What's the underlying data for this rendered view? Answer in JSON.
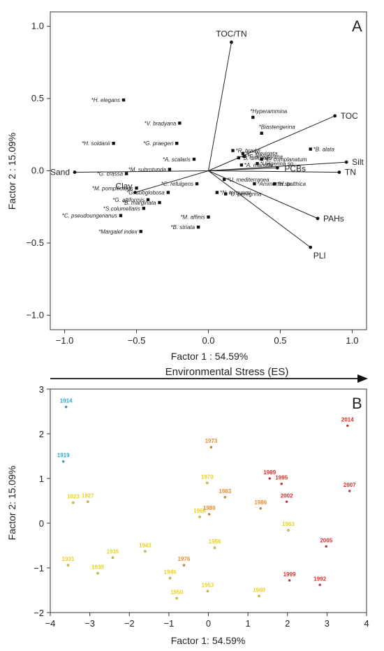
{
  "panel_a": {
    "letter": "A",
    "xlabel": "Factor 1 : 54.59%",
    "ylabel": "Factor 2 : 15.09%"
  },
  "arrow_label": "Environmental Stress (ES)",
  "panel_b": {
    "letter": "B",
    "xlabel": "Factor 1: 54.59%",
    "ylabel": "Factor 2: 15.09%"
  },
  "chart_data": [
    {
      "type": "scatter",
      "xlim": [
        -1.1,
        1.1
      ],
      "ylim": [
        -1.1,
        1.1
      ],
      "x_ticks": [
        -1.0,
        -0.5,
        0.0,
        0.5,
        1.0
      ],
      "y_ticks": [
        -1.0,
        -0.5,
        0.0,
        0.5,
        1.0
      ],
      "x_tick_labels": [
        "−1.0",
        "−0.5",
        "0.0",
        "0.5",
        "1.0"
      ],
      "y_tick_labels": [
        "−1.0",
        "−0.5",
        "0.0",
        "0.5",
        "1.0"
      ],
      "grid": false,
      "vectors": [
        {
          "label": "TOC/TN",
          "x": 0.16,
          "y": 0.89
        },
        {
          "label": "TOC",
          "x": 0.88,
          "y": 0.38
        },
        {
          "label": "Silt",
          "x": 0.96,
          "y": 0.06
        },
        {
          "label": "TN",
          "x": 0.91,
          "y": -0.01
        },
        {
          "label": "PCBs",
          "x": 0.48,
          "y": 0.02
        },
        {
          "label": "PAHs",
          "x": 0.76,
          "y": -0.33
        },
        {
          "label": "PLI",
          "x": 0.71,
          "y": -0.53
        },
        {
          "label": "Sand",
          "x": -0.93,
          "y": -0.01
        },
        {
          "label": "Clay",
          "x": -0.51,
          "y": -0.15
        }
      ],
      "species": [
        {
          "label": "*H. elegans",
          "x": -0.59,
          "y": 0.49
        },
        {
          "label": "*V. bradyana",
          "x": -0.2,
          "y": 0.33
        },
        {
          "label": "*H. soldanii",
          "x": -0.66,
          "y": 0.19
        },
        {
          "label": "*G. praegeri",
          "x": -0.22,
          "y": 0.19
        },
        {
          "label": "*Hyperammina",
          "x": 0.31,
          "y": 0.37
        },
        {
          "label": "*Biasterigerina",
          "x": 0.37,
          "y": 0.26
        },
        {
          "label": "TOC",
          "x": 0.0,
          "y": 0.0,
          "skip": true
        },
        {
          "label": "*B. alata",
          "x": 0.71,
          "y": 0.15
        },
        {
          "label": "*R. bradyi",
          "x": 0.17,
          "y": 0.14
        },
        {
          "label": "*C. laevigata",
          "x": 0.24,
          "y": 0.12
        },
        {
          "label": "*F. orbignyana",
          "x": 0.25,
          "y": 0.1
        },
        {
          "label": "*B. difformis",
          "x": 0.21,
          "y": 0.09
        },
        {
          "label": "*A. scalaris",
          "x": -0.1,
          "y": 0.08
        },
        {
          "label": "*E. complanatum",
          "x": 0.37,
          "y": 0.08
        },
        {
          "label": "*Uvigerina sp.",
          "x": 0.34,
          "y": 0.05
        },
        {
          "label": "*A. mamilla",
          "x": 0.23,
          "y": 0.04
        },
        {
          "label": "*G. crassa",
          "x": -0.57,
          "y": -0.02
        },
        {
          "label": "*M. subrotunda",
          "x": -0.27,
          "y": 0.01
        },
        {
          "label": "*U. mediterranea",
          "x": 0.11,
          "y": -0.06
        },
        {
          "label": "*Ammonia sp.",
          "x": 0.32,
          "y": -0.09
        },
        {
          "label": "*C. refulgens",
          "x": -0.08,
          "y": -0.09
        },
        {
          "label": "*H. balthica",
          "x": 0.46,
          "y": -0.09
        },
        {
          "label": "*M. pompilioides",
          "x": -0.5,
          "y": -0.12
        },
        {
          "label": "*N. terquemi",
          "x": 0.06,
          "y": -0.15
        },
        {
          "label": "*G. subglobosa",
          "x": -0.28,
          "y": -0.15
        },
        {
          "label": "*U. peregrina",
          "x": 0.12,
          "y": -0.16
        },
        {
          "label": "*G. altiformis",
          "x": -0.42,
          "y": -0.2
        },
        {
          "label": "*B. marginata",
          "x": -0.34,
          "y": -0.22
        },
        {
          "label": "*S.columellaris",
          "x": -0.45,
          "y": -0.26
        },
        {
          "label": "*C. pseudoungerianus",
          "x": -0.61,
          "y": -0.31
        },
        {
          "label": "*M. affinis",
          "x": 0.0,
          "y": -0.32
        },
        {
          "label": "*B. striata",
          "x": -0.07,
          "y": -0.39
        },
        {
          "label": "*Margalef index",
          "x": -0.47,
          "y": -0.42
        }
      ]
    },
    {
      "type": "scatter",
      "xlim": [
        -4,
        4
      ],
      "ylim": [
        -2,
        3
      ],
      "x_ticks": [
        -4,
        -3,
        -2,
        -1,
        0,
        1,
        2,
        3,
        4
      ],
      "y_ticks": [
        -2,
        -1,
        0,
        1,
        2,
        3
      ],
      "x_tick_labels": [
        "−4",
        "−3",
        "−2",
        "−1",
        "0",
        "1",
        "2",
        "3",
        "4"
      ],
      "y_tick_labels": [
        "−2",
        "−1",
        "0",
        "1",
        "2",
        "3"
      ],
      "grid": false,
      "colors": {
        "blue": "#1ea7d6",
        "yellow": "#e8d21a",
        "orange": "#e58a2a",
        "red": "#e02a2a"
      },
      "points": [
        {
          "label": "1914",
          "x": -3.6,
          "y": 2.6,
          "group": "blue"
        },
        {
          "label": "1919",
          "x": -3.67,
          "y": 1.38,
          "group": "blue"
        },
        {
          "label": "1923",
          "x": -3.42,
          "y": 0.46,
          "group": "yellow"
        },
        {
          "label": "1927",
          "x": -3.05,
          "y": 0.48,
          "group": "yellow"
        },
        {
          "label": "1931",
          "x": -3.55,
          "y": -0.94,
          "group": "yellow"
        },
        {
          "label": "1939",
          "x": -2.8,
          "y": -1.12,
          "group": "yellow"
        },
        {
          "label": "1935",
          "x": -2.42,
          "y": -0.77,
          "group": "yellow"
        },
        {
          "label": "1943",
          "x": -1.6,
          "y": -0.63,
          "group": "yellow"
        },
        {
          "label": "1946",
          "x": -0.97,
          "y": -1.23,
          "group": "yellow"
        },
        {
          "label": "1950",
          "x": -0.8,
          "y": -1.68,
          "group": "yellow"
        },
        {
          "label": "1953",
          "x": -0.02,
          "y": -1.52,
          "group": "yellow"
        },
        {
          "label": "1956",
          "x": 0.16,
          "y": -0.55,
          "group": "yellow"
        },
        {
          "label": "1960",
          "x": 1.28,
          "y": -1.63,
          "group": "yellow"
        },
        {
          "label": "1963",
          "x": 2.02,
          "y": -0.16,
          "group": "yellow"
        },
        {
          "label": "1966",
          "x": -0.22,
          "y": 0.14,
          "group": "yellow"
        },
        {
          "label": "1970",
          "x": -0.03,
          "y": 0.9,
          "group": "yellow"
        },
        {
          "label": "1973",
          "x": 0.07,
          "y": 1.7,
          "group": "orange"
        },
        {
          "label": "1976",
          "x": -0.62,
          "y": -0.94,
          "group": "orange"
        },
        {
          "label": "1980",
          "x": 0.02,
          "y": 0.2,
          "group": "orange"
        },
        {
          "label": "1983",
          "x": 0.42,
          "y": 0.58,
          "group": "orange"
        },
        {
          "label": "1986",
          "x": 1.32,
          "y": 0.33,
          "group": "orange"
        },
        {
          "label": "1989",
          "x": 1.55,
          "y": 1.0,
          "group": "red"
        },
        {
          "label": "1995",
          "x": 1.85,
          "y": 0.88,
          "group": "red"
        },
        {
          "label": "2002",
          "x": 1.98,
          "y": 0.48,
          "group": "red"
        },
        {
          "label": "2005",
          "x": 2.98,
          "y": -0.52,
          "group": "red"
        },
        {
          "label": "1999",
          "x": 2.05,
          "y": -1.28,
          "group": "red"
        },
        {
          "label": "1992",
          "x": 2.82,
          "y": -1.38,
          "group": "red"
        },
        {
          "label": "2014",
          "x": 3.52,
          "y": 2.18,
          "group": "red"
        },
        {
          "label": "2007",
          "x": 3.57,
          "y": 0.72,
          "group": "red"
        }
      ]
    }
  ]
}
